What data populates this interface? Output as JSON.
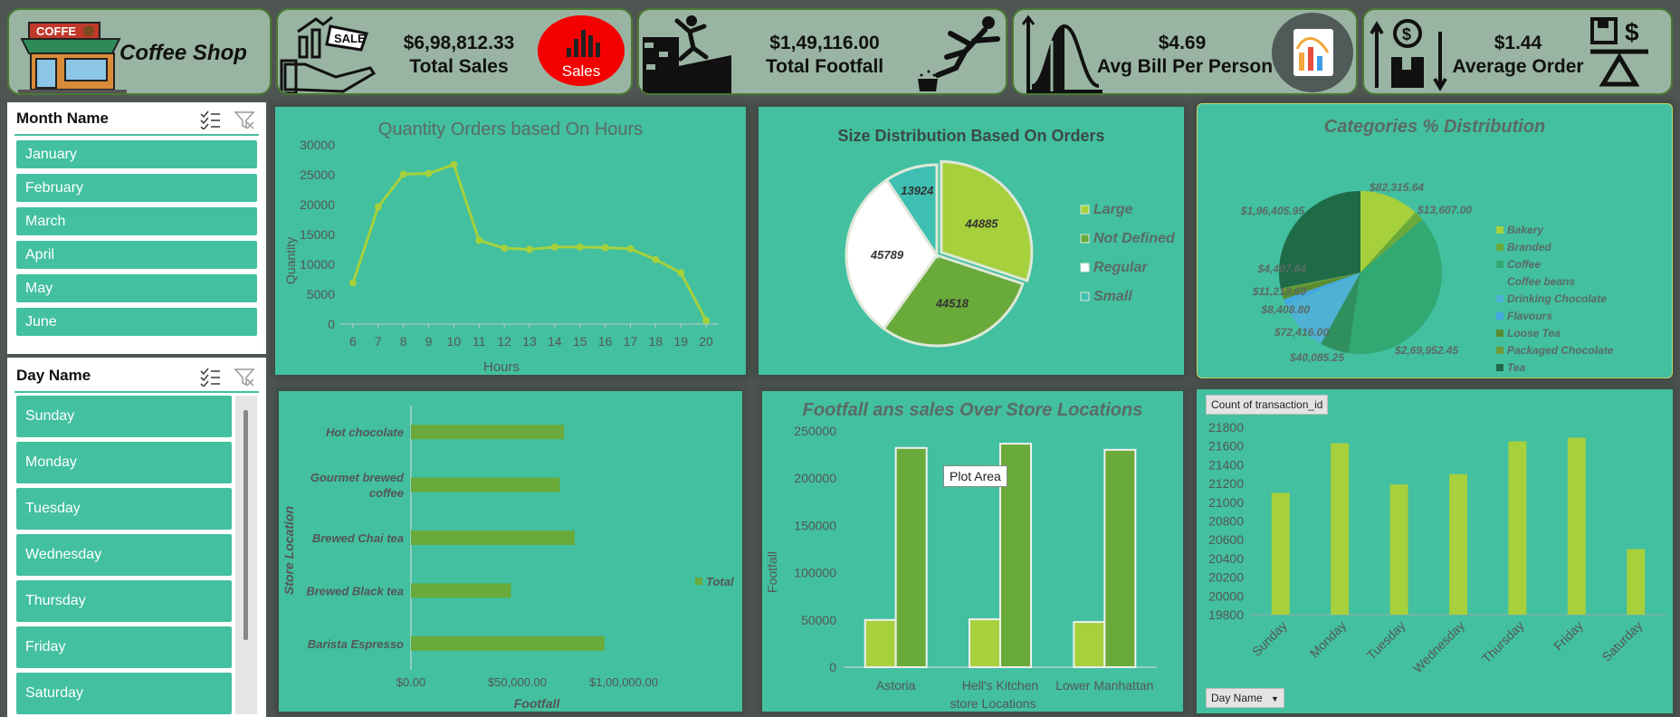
{
  "kpis": {
    "shop_title": "Coffee Shop",
    "coffee_sign": "COFFE",
    "sales_value": "$6,98,812.33",
    "sales_label": "Total Sales",
    "sales_badge": "Sales",
    "sale_tag": "SALE",
    "footfall_value": "$1,49,116.00",
    "footfall_label": "Total Footfall",
    "bill_value": "$4.69",
    "bill_label": "Avg Bill Per Person",
    "order_value": "$1.44",
    "order_label": "Average Order"
  },
  "month_slicer": {
    "title": "Month Name",
    "items": [
      "January",
      "February",
      "March",
      "April",
      "May",
      "June"
    ]
  },
  "day_slicer": {
    "title": "Day Name",
    "items": [
      "Sunday",
      "Monday",
      "Tuesday",
      "Wednesday",
      "Thursday",
      "Friday",
      "Saturday"
    ]
  },
  "colors": {
    "panel": "#42c0a0",
    "lime": "#a6d03c",
    "green": "#6aaa3a",
    "dark_green": "#1f6b48"
  },
  "chart_data": [
    {
      "type": "line",
      "title": "Quantity Orders based On Hours",
      "xlabel": "Hours",
      "ylabel": "Quantity",
      "x": [
        6,
        7,
        8,
        9,
        10,
        11,
        12,
        13,
        14,
        15,
        16,
        17,
        18,
        19,
        20
      ],
      "values": [
        6900,
        19600,
        25100,
        25200,
        26700,
        14000,
        12700,
        12500,
        12900,
        12900,
        12800,
        12600,
        10800,
        8600,
        600
      ],
      "ylim": [
        0,
        30000
      ],
      "yticks": [
        "0",
        "5000",
        "10000",
        "15000",
        "20000",
        "25000",
        "30000"
      ]
    },
    {
      "type": "pie",
      "title": "Size Distribution Based On Orders",
      "slices": [
        {
          "name": "Large",
          "value": 44885,
          "label": "44885"
        },
        {
          "name": "Not Defined",
          "value": 44518,
          "label": "44518"
        },
        {
          "name": "Regular",
          "value": 45789,
          "label": "45789"
        },
        {
          "name": "Small",
          "value": 13924,
          "label": "13924"
        }
      ],
      "legend": [
        "Large",
        "Not Defined",
        "Regular",
        "Small"
      ]
    },
    {
      "type": "pie",
      "title": "Categories % Distribution",
      "slices": [
        {
          "name": "Bakery",
          "value": 82315.64,
          "label": "$82,315.64"
        },
        {
          "name": "Branded",
          "value": 13607.0,
          "label": "$13,607.00"
        },
        {
          "name": "Coffee",
          "value": 269952.45,
          "label": "$2,69,952.45"
        },
        {
          "name": "Coffee beans",
          "value": 40085.25,
          "label": "$40,085.25"
        },
        {
          "name": "Drinking Chocolate",
          "value": 72416.0,
          "label": "$72,416.00"
        },
        {
          "name": "Flavours",
          "value": 8408.8,
          "label": "$8,408.80"
        },
        {
          "name": "Loose Tea",
          "value": 11213.6,
          "label": "$11,213.60"
        },
        {
          "name": "Packaged Chocolate",
          "value": 4407.64,
          "label": "$4,407.64"
        },
        {
          "name": "Tea",
          "value": 196405.95,
          "label": "$1,96,405.95"
        }
      ],
      "legend": [
        "Bakery",
        "Branded",
        "Coffee",
        "Coffee beans",
        "Drinking Chocolate",
        "Flavours",
        "Loose Tea",
        "Packaged Chocolate",
        "Tea"
      ]
    },
    {
      "type": "bar",
      "orientation": "horizontal",
      "xlabel": "Footfall",
      "ylabel": "Store Location",
      "categories": [
        "Hot chocolate",
        "Gourmet brewed coffee",
        "Brewed Chai tea",
        "Brewed Black tea",
        "Barista Espresso"
      ],
      "category_lines": [
        [
          "Hot chocolate"
        ],
        [
          "Gourmet brewed",
          "coffee"
        ],
        [
          "Brewed Chai tea"
        ],
        [
          "Brewed Black tea"
        ],
        [
          "Barista Espresso"
        ]
      ],
      "values": [
        72000,
        70000,
        77000,
        47000,
        91000
      ],
      "xlim": [
        0,
        120000
      ],
      "xticks": [
        "$0.00",
        "$50,000.00",
        "$1,00,000.00"
      ],
      "legend": [
        "Total"
      ]
    },
    {
      "type": "bar",
      "title": "Footfall ans sales Over Store Locations",
      "xlabel": "store Locations",
      "ylabel": "Footfall",
      "categories": [
        "Astoria",
        "Hell's Kitchen",
        "Lower Manhattan"
      ],
      "series": [
        {
          "values": [
            50000,
            50700,
            47800
          ]
        },
        {
          "values": [
            232000,
            236500,
            230000
          ]
        }
      ],
      "ylim": [
        0,
        250000
      ],
      "yticks": [
        "0",
        "50000",
        "100000",
        "150000",
        "200000",
        "250000"
      ],
      "tooltip": "Plot Area"
    },
    {
      "type": "bar",
      "field_button": "Count  of transaction_id",
      "axis_button": "Day  Name",
      "categories": [
        "Sunday",
        "Monday",
        "Tuesday",
        "Wednesday",
        "Thursday",
        "Friday",
        "Saturday"
      ],
      "values": [
        21100,
        21630,
        21190,
        21300,
        21650,
        21690,
        20500
      ],
      "ylim": [
        19800,
        21800
      ],
      "yticks": [
        "19800",
        "20000",
        "20200",
        "20400",
        "20600",
        "20800",
        "21000",
        "21200",
        "21400",
        "21600",
        "21800"
      ]
    }
  ]
}
